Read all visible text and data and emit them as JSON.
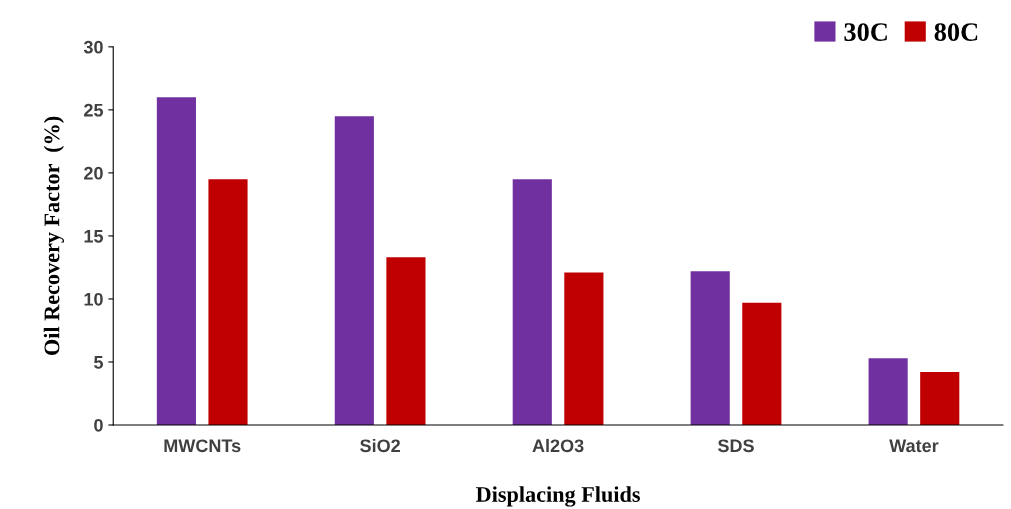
{
  "chart_data": {
    "type": "bar",
    "xlabel": "Displacing Fluids",
    "ylabel": "Oil Recovery Factor  (%)",
    "categories": [
      "MWCNTs",
      "SiO2",
      "Al2O3",
      "SDS",
      "Water"
    ],
    "series": [
      {
        "name": "30C",
        "color": "#7030a0",
        "values": [
          26,
          24.5,
          19.5,
          12.2,
          5.3
        ]
      },
      {
        "name": "80C",
        "color": "#c00000",
        "values": [
          19.5,
          13.3,
          12.1,
          9.7,
          4.2
        ]
      }
    ],
    "ylim": [
      0,
      30
    ],
    "yticks": [
      0,
      5,
      10,
      15,
      20,
      25,
      30
    ],
    "grid": false,
    "legend": "top right"
  }
}
